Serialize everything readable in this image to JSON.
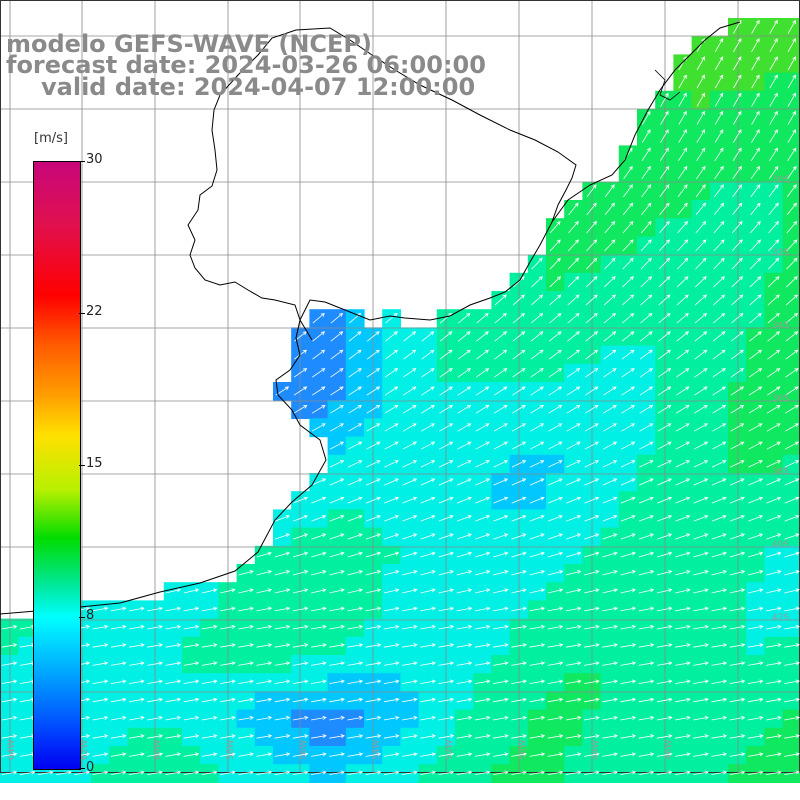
{
  "title": {
    "line1": "modelo GEFS-WAVE (NCEP)",
    "line2": "forecast date: 2024-03-26 06:00:00",
    "line3": "valid date: 2024-04-07 12:00:00"
  },
  "colorbar": {
    "units": "[m/s]",
    "ticks": [
      "30",
      "22",
      "15",
      "8",
      "0"
    ],
    "tick_values": [
      30,
      22,
      15,
      8,
      0
    ],
    "range": [
      0,
      30
    ],
    "colors": [
      "#0000f0",
      "#0040ff",
      "#00a8ff",
      "#00ffff",
      "#00e8a0",
      "#00dc00",
      "#b8f000",
      "#ffe000",
      "#ff9a00",
      "#ff5a00",
      "#ff0000",
      "#e01050",
      "#c8067a"
    ]
  },
  "map": {
    "land_color": "#ffffff",
    "coast_color": "#000000",
    "grid_color": "#7a7a7a",
    "arrow_color": "#ffffff",
    "lat_labels": [
      "30S",
      "32S",
      "34S",
      "36S",
      "38S",
      "40S",
      "42S"
    ],
    "lon_labels": [
      "64W",
      "62W",
      "60W",
      "58W",
      "56W",
      "54W",
      "52W",
      "50W",
      "48W",
      "46W"
    ],
    "wind_field": "mostly 8-12 m/s, flow from west / southwest, stronger (green) offshore south-east, weaker (blue) near the estuary"
  }
}
